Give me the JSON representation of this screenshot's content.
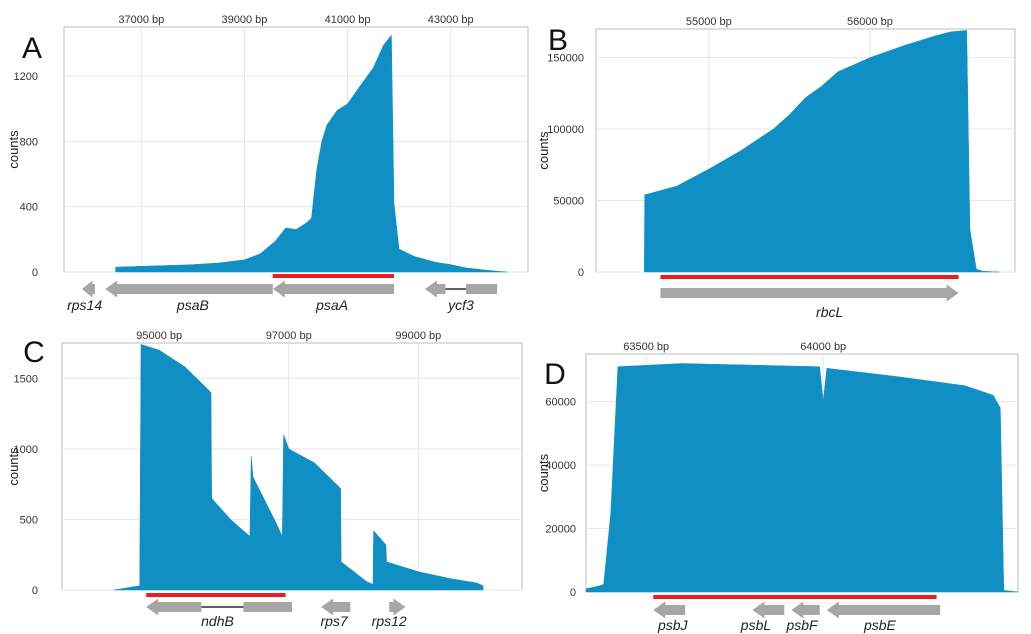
{
  "colors": {
    "fill": "#0f8fc4",
    "grid": "#e6e6e6",
    "gene": "#a6a6a6",
    "highlight": "#ee1c1c",
    "line": "#000000"
  },
  "chart_data": [
    {
      "type": "area",
      "panel": "A",
      "xlabel": "",
      "ylabel": "counts",
      "xlim": [
        35500,
        44500
      ],
      "ylim": [
        0,
        1500
      ],
      "x_ticks": [
        37000,
        39000,
        41000,
        43000
      ],
      "x_tick_labels": [
        "37000 bp",
        "39000 bp",
        "41000 bp",
        "43000 bp"
      ],
      "y_ticks": [
        0,
        400,
        800,
        1200
      ],
      "y_tick_labels": [
        "0",
        "400",
        "800",
        "1200"
      ],
      "grid": true,
      "x": [
        36500,
        37000,
        37500,
        38000,
        38500,
        39000,
        39300,
        39600,
        39800,
        40000,
        40200,
        40300,
        40400,
        40500,
        40600,
        40800,
        41000,
        41200,
        41500,
        41700,
        41850,
        41900,
        42000,
        42300,
        42700,
        43000,
        43300,
        43600,
        43900,
        44100
      ],
      "y": [
        30,
        35,
        40,
        45,
        55,
        75,
        110,
        190,
        270,
        260,
        300,
        330,
        620,
        800,
        900,
        990,
        1030,
        1120,
        1250,
        1390,
        1450,
        420,
        140,
        95,
        60,
        45,
        25,
        15,
        5,
        0
      ],
      "highlight_range": [
        39550,
        41900
      ],
      "genes": [
        {
          "label": "rps14",
          "segments": [
            [
              35850,
              36100
            ]
          ],
          "strand": "-",
          "label_x": 35900
        },
        {
          "label": "psaB",
          "segments": [
            [
              36300,
              39550
            ]
          ],
          "strand": "-",
          "label_x": 38000
        },
        {
          "label": "psaA",
          "segments": [
            [
              39550,
              41900
            ]
          ],
          "strand": "-",
          "label_x": 40700
        },
        {
          "label": "ycf3",
          "segments": [
            [
              42500,
              42900
            ],
            [
              43300,
              43900
            ]
          ],
          "strand": "-",
          "label_x": 43200
        }
      ]
    },
    {
      "type": "area",
      "panel": "B",
      "xlabel": "",
      "ylabel": "counts",
      "xlim": [
        54300,
        56900
      ],
      "ylim": [
        0,
        170000
      ],
      "x_ticks": [
        55000,
        56000
      ],
      "x_tick_labels": [
        "55000 bp",
        "56000 bp"
      ],
      "y_ticks": [
        0,
        50000,
        100000,
        150000
      ],
      "y_tick_labels": [
        "0",
        "50000",
        "100000",
        "150000"
      ],
      "grid": true,
      "x": [
        54600,
        54602,
        54800,
        55000,
        55200,
        55400,
        55500,
        55600,
        55700,
        55800,
        56000,
        56200,
        56400,
        56500,
        56600,
        56620,
        56660,
        56700,
        56800
      ],
      "y": [
        0,
        54000,
        60000,
        72000,
        85000,
        100000,
        110000,
        122000,
        130000,
        140000,
        150000,
        158000,
        165000,
        168000,
        169000,
        30000,
        2000,
        500,
        0
      ],
      "highlight_range": [
        54700,
        56550
      ],
      "genes": [
        {
          "label": "rbcL",
          "segments": [
            [
              54700,
              56550
            ]
          ],
          "strand": "+",
          "label_x": 55750
        }
      ]
    },
    {
      "type": "area",
      "panel": "C",
      "xlabel": "",
      "ylabel": "counts",
      "xlim": [
        93500,
        100600
      ],
      "ylim": [
        0,
        1750
      ],
      "x_ticks": [
        95000,
        97000,
        99000
      ],
      "x_tick_labels": [
        "95000 bp",
        "97000 bp",
        "99000 bp"
      ],
      "y_ticks": [
        0,
        500,
        1000,
        1500
      ],
      "y_tick_labels": [
        "0",
        "500",
        "1000",
        "1500"
      ],
      "grid": true,
      "x": [
        94300,
        94700,
        94720,
        95000,
        95400,
        95800,
        95810,
        96100,
        96400,
        96420,
        96450,
        96800,
        96900,
        96920,
        97000,
        97400,
        97800,
        97810,
        98200,
        98300,
        98310,
        98500,
        98510,
        99000,
        99500,
        99900,
        100000
      ],
      "y": [
        0,
        30,
        1740,
        1700,
        1580,
        1400,
        650,
        500,
        380,
        950,
        800,
        480,
        380,
        1100,
        1000,
        900,
        720,
        200,
        60,
        40,
        420,
        320,
        200,
        130,
        80,
        50,
        30
      ],
      "highlight_range": [
        94800,
        96950
      ],
      "genes": [
        {
          "label": "ndhB",
          "segments": [
            [
              94800,
              95650
            ],
            [
              96300,
              97050
            ]
          ],
          "strand": "-",
          "label_x": 95900
        },
        {
          "label": "rps7",
          "segments": [
            [
              97500,
              97950
            ]
          ],
          "strand": "-",
          "label_x": 97700
        },
        {
          "label": "rps12",
          "segments": [
            [
              98550,
              98800
            ]
          ],
          "strand": "+",
          "label_x": 98550
        }
      ]
    },
    {
      "type": "area",
      "panel": "D",
      "xlabel": "",
      "ylabel": "counts",
      "xlim": [
        63330,
        64550
      ],
      "ylim": [
        0,
        75000
      ],
      "x_ticks": [
        63500,
        64000
      ],
      "x_tick_labels": [
        "63500 bp",
        "64000 bp"
      ],
      "y_ticks": [
        0,
        20000,
        40000,
        60000
      ],
      "y_tick_labels": [
        "0",
        "20000",
        "40000",
        "60000"
      ],
      "grid": true,
      "x": [
        63330,
        63370,
        63380,
        63400,
        63420,
        63600,
        63800,
        63990,
        64000,
        64010,
        64200,
        64400,
        64480,
        64500,
        64510,
        64550
      ],
      "y": [
        1000,
        2000,
        2500,
        25000,
        71000,
        72000,
        71500,
        71000,
        60000,
        70500,
        68000,
        65000,
        62000,
        58000,
        500,
        0
      ],
      "highlight_range": [
        63520,
        64320
      ],
      "genes": [
        {
          "label": "psbJ",
          "segments": [
            [
              63520,
              63610
            ]
          ],
          "strand": "-",
          "label_x": 63575
        },
        {
          "label": "psbL",
          "segments": [
            [
              63800,
              63890
            ]
          ],
          "strand": "-",
          "label_x": 63810
        },
        {
          "label": "psbF",
          "segments": [
            [
              63910,
              63990
            ]
          ],
          "strand": "-",
          "label_x": 63940
        },
        {
          "label": "psbE",
          "segments": [
            [
              64010,
              64330
            ]
          ],
          "strand": "-",
          "label_x": 64160
        }
      ]
    }
  ]
}
